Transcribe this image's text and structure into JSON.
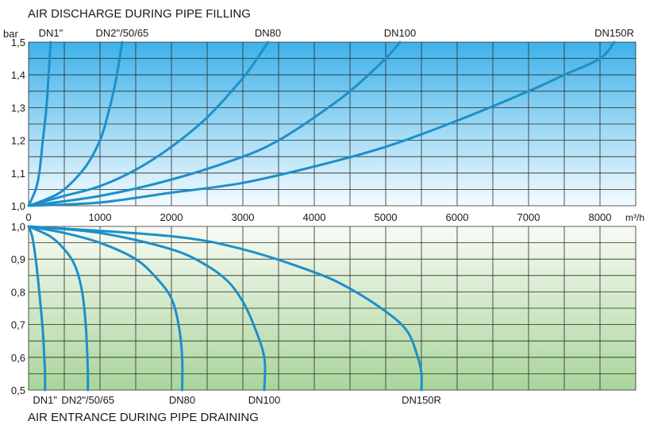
{
  "colors": {
    "curve": "#1e8fc9",
    "grid": "#2a2a2a",
    "top_gradient": [
      "#3db2ea",
      "#f4fbfe"
    ],
    "bottom_gradient": [
      "#f7fbf3",
      "#a9d59b"
    ]
  },
  "chart_data": [
    {
      "type": "line",
      "title": "AIR DISCHARGE DURING PIPE FILLING",
      "ylabel": "bar",
      "xlabel": "m³/h",
      "xlim": [
        0,
        8500
      ],
      "ylim": [
        1.0,
        1.5
      ],
      "x_ticks": [
        "0",
        "1000",
        "2000",
        "3000",
        "4000",
        "5000",
        "6000",
        "7000",
        "8000"
      ],
      "y_ticks": [
        "1,0",
        "1,1",
        "1,2",
        "1,3",
        "1,4",
        "1,5"
      ],
      "grid": true,
      "series": [
        {
          "name": "DN1\"",
          "points": [
            [
              0,
              1.0
            ],
            [
              100,
              1.05
            ],
            [
              150,
              1.1
            ],
            [
              200,
              1.2
            ],
            [
              250,
              1.3
            ],
            [
              280,
              1.4
            ],
            [
              310,
              1.5
            ]
          ]
        },
        {
          "name": "DN2\"/50/65",
          "points": [
            [
              0,
              1.0
            ],
            [
              250,
              1.02
            ],
            [
              500,
              1.05
            ],
            [
              800,
              1.12
            ],
            [
              1000,
              1.2
            ],
            [
              1100,
              1.27
            ],
            [
              1200,
              1.36
            ],
            [
              1260,
              1.43
            ],
            [
              1310,
              1.5
            ]
          ]
        },
        {
          "name": "DN80",
          "points": [
            [
              0,
              1.0
            ],
            [
              500,
              1.03
            ],
            [
              1000,
              1.06
            ],
            [
              1500,
              1.11
            ],
            [
              2000,
              1.18
            ],
            [
              2500,
              1.27
            ],
            [
              3000,
              1.39
            ],
            [
              3200,
              1.45
            ],
            [
              3350,
              1.5
            ]
          ]
        },
        {
          "name": "DN100",
          "points": [
            [
              0,
              1.0
            ],
            [
              1000,
              1.03
            ],
            [
              2000,
              1.08
            ],
            [
              3000,
              1.15
            ],
            [
              3500,
              1.2
            ],
            [
              4000,
              1.27
            ],
            [
              4500,
              1.35
            ],
            [
              5000,
              1.45
            ],
            [
              5200,
              1.5
            ]
          ]
        },
        {
          "name": "DN150R",
          "points": [
            [
              0,
              1.0
            ],
            [
              1000,
              1.01
            ],
            [
              2000,
              1.04
            ],
            [
              3000,
              1.07
            ],
            [
              4000,
              1.12
            ],
            [
              5000,
              1.18
            ],
            [
              6000,
              1.26
            ],
            [
              7000,
              1.35
            ],
            [
              7500,
              1.4
            ],
            [
              8000,
              1.45
            ],
            [
              8200,
              1.5
            ]
          ]
        }
      ]
    },
    {
      "type": "line",
      "title": "AIR ENTRANCE DURING PIPE DRAINING",
      "xlim": [
        0,
        8500
      ],
      "ylim": [
        0.5,
        1.0
      ],
      "y_ticks": [
        "1,0",
        "0,9",
        "0,8",
        "0,7",
        "0,6",
        "0,5"
      ],
      "grid": true,
      "series": [
        {
          "name": "DN1\"",
          "points": [
            [
              0,
              1.0
            ],
            [
              50,
              0.97
            ],
            [
              100,
              0.9
            ],
            [
              150,
              0.8
            ],
            [
              200,
              0.68
            ],
            [
              220,
              0.6
            ],
            [
              230,
              0.55
            ],
            [
              230,
              0.5
            ]
          ]
        },
        {
          "name": "DN2\"/50/65",
          "points": [
            [
              0,
              1.0
            ],
            [
              300,
              0.97
            ],
            [
              500,
              0.93
            ],
            [
              650,
              0.88
            ],
            [
              750,
              0.8
            ],
            [
              800,
              0.7
            ],
            [
              820,
              0.62
            ],
            [
              830,
              0.55
            ],
            [
              830,
              0.5
            ]
          ]
        },
        {
          "name": "DN80",
          "points": [
            [
              0,
              1.0
            ],
            [
              500,
              0.98
            ],
            [
              1000,
              0.95
            ],
            [
              1500,
              0.9
            ],
            [
              1800,
              0.84
            ],
            [
              2000,
              0.78
            ],
            [
              2100,
              0.7
            ],
            [
              2150,
              0.6
            ],
            [
              2150,
              0.5
            ]
          ]
        },
        {
          "name": "DN100",
          "points": [
            [
              0,
              1.0
            ],
            [
              1000,
              0.98
            ],
            [
              2000,
              0.93
            ],
            [
              2500,
              0.88
            ],
            [
              2800,
              0.83
            ],
            [
              3000,
              0.77
            ],
            [
              3150,
              0.7
            ],
            [
              3300,
              0.6
            ],
            [
              3300,
              0.5
            ]
          ]
        },
        {
          "name": "DN150R",
          "points": [
            [
              0,
              1.0
            ],
            [
              2000,
              0.97
            ],
            [
              3000,
              0.93
            ],
            [
              4000,
              0.86
            ],
            [
              4500,
              0.81
            ],
            [
              5000,
              0.74
            ],
            [
              5300,
              0.68
            ],
            [
              5450,
              0.6
            ],
            [
              5500,
              0.55
            ],
            [
              5500,
              0.5
            ]
          ]
        }
      ]
    }
  ]
}
